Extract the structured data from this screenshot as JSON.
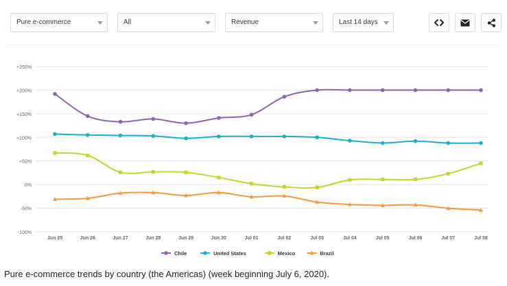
{
  "filters": {
    "category": "Pure e-commerce",
    "region": "All",
    "metric": "Revenue",
    "period": "Last 14 days"
  },
  "icons": [
    "embed-code-icon",
    "email-icon",
    "share-icon"
  ],
  "caption": "Pure e-commerce trends by country (the Americas) (week beginning July 6, 2020).",
  "chart_data": {
    "type": "line",
    "x": [
      "Jun 25",
      "Jun 26",
      "Jun 27",
      "Jun 28",
      "Jun 29",
      "Jun 30",
      "Jul 01",
      "Jul 02",
      "Jul 03",
      "Jul 04",
      "Jul 05",
      "Jul 06",
      "Jul 07",
      "Jul 08"
    ],
    "y_ticks": [
      {
        "value": 250,
        "label": "+250%"
      },
      {
        "value": 200,
        "label": "+200%"
      },
      {
        "value": 150,
        "label": "+150%"
      },
      {
        "value": 100,
        "label": "+100%"
      },
      {
        "value": 50,
        "label": "+50%"
      },
      {
        "value": 0,
        "label": "0%"
      },
      {
        "value": -50,
        "label": "-50%"
      },
      {
        "value": -100,
        "label": "-100%"
      }
    ],
    "ylim": [
      -100,
      250
    ],
    "grid": true,
    "legend_position": "bottom",
    "series": [
      {
        "name": "Chile",
        "color": "#8e62ad",
        "marker": "circle",
        "values": [
          192,
          145,
          133,
          139,
          130,
          141,
          148,
          186,
          200,
          200,
          200,
          200,
          200,
          200
        ]
      },
      {
        "name": "United States",
        "color": "#1ab0ca",
        "marker": "circle",
        "values": [
          107,
          105,
          104,
          103,
          98,
          102,
          102,
          102,
          100,
          93,
          88,
          92,
          88,
          88
        ]
      },
      {
        "name": "Mexico",
        "color": "#c4d62c",
        "marker": "square",
        "values": [
          67,
          62,
          26,
          27,
          26,
          15,
          2,
          -5,
          -6,
          10,
          11,
          11,
          23,
          45
        ]
      },
      {
        "name": "Brazil",
        "color": "#f39a3c",
        "marker": "triangle",
        "values": [
          -31,
          -29,
          -18,
          -17,
          -23,
          -17,
          -26,
          -24,
          -37,
          -42,
          -44,
          -43,
          -50,
          -54
        ]
      }
    ]
  }
}
